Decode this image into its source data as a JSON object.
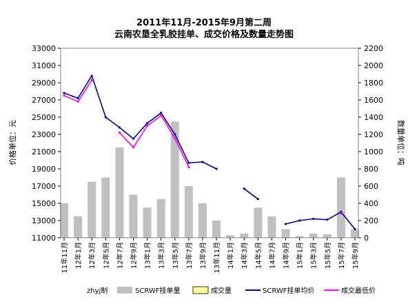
{
  "chart_data": {
    "type": "line",
    "title": "2011年11月-2015年9月第二周",
    "subtitle": "云南农垦全乳胶挂单、成交价格及数量走势图",
    "ylabel_left": "价格单位：元",
    "ylabel_right": "数量单位：吨",
    "y_left_range": [
      11000,
      33000
    ],
    "y_left_ticks": [
      "33000",
      "31000",
      "29000",
      "27000",
      "25000",
      "23000",
      "21000",
      "19000",
      "17000",
      "15000",
      "13000",
      "11000"
    ],
    "y_right_range": [
      0,
      2200
    ],
    "y_right_ticks": [
      "2200",
      "2000",
      "1800",
      "1600",
      "1400",
      "1200",
      "1000",
      "800",
      "600",
      "400",
      "200",
      "0"
    ],
    "x_labels": [
      "11年11月",
      "12年1月",
      "12年3月",
      "12年5月",
      "12年7月",
      "12年9月",
      "13年1月",
      "13年3月",
      "13年5月",
      "13年7月",
      "13年9月",
      "13年11月",
      "14年1月",
      "14年3月",
      "14年5月",
      "14年7月",
      "14年9月",
      "15年1月",
      "15年3月",
      "15年5月",
      "15年7月",
      "15年9月"
    ],
    "grid": false,
    "legend_position": "bottom",
    "legend": {
      "maker": "zhyj制",
      "items": [
        {
          "label": "SCRWF挂单量",
          "color": "#c0c0c0",
          "kind": "bar"
        },
        {
          "label": "成交量",
          "color": "#ffff99",
          "kind": "bar"
        },
        {
          "label": "SCRWF挂单均价",
          "color": "#000080",
          "kind": "line"
        },
        {
          "label": "成交最低价",
          "color": "#ff00ff",
          "kind": "line"
        }
      ]
    },
    "series": [
      {
        "name": "SCRWF挂单均价",
        "axis": "left",
        "x": [
          0,
          1,
          2,
          3,
          4,
          5,
          6,
          7,
          8,
          9,
          10,
          11,
          12,
          13,
          14,
          15,
          16,
          17,
          18,
          19,
          20,
          21
        ],
        "values": [
          27800,
          27200,
          29800,
          25000,
          23800,
          22500,
          24300,
          25500,
          23000,
          19700,
          19800,
          19000,
          null,
          16700,
          15500,
          null,
          12600,
          13000,
          13200,
          13100,
          14000,
          12000
        ]
      },
      {
        "name": "成交最低价",
        "axis": "left",
        "x": [
          0,
          1,
          2,
          3,
          4,
          5,
          6,
          7,
          8,
          9,
          10,
          11,
          12,
          13,
          14,
          15,
          16,
          17,
          18,
          19,
          20,
          21
        ],
        "values": [
          27500,
          26800,
          29300,
          null,
          23200,
          21500,
          24000,
          25200,
          22500,
          19200,
          null,
          null,
          null,
          null,
          null,
          null,
          null,
          null,
          null,
          null,
          13800,
          null
        ]
      },
      {
        "name": "SCRWF挂单量",
        "axis": "right",
        "x": [
          0,
          1,
          2,
          3,
          4,
          5,
          6,
          7,
          8,
          9,
          10,
          11,
          12,
          13,
          14,
          15,
          16,
          17,
          18,
          19,
          20,
          21
        ],
        "values": [
          400,
          250,
          650,
          700,
          1050,
          500,
          350,
          450,
          1350,
          600,
          400,
          200,
          30,
          50,
          350,
          250,
          100,
          20,
          50,
          40,
          700,
          100
        ]
      }
    ]
  }
}
